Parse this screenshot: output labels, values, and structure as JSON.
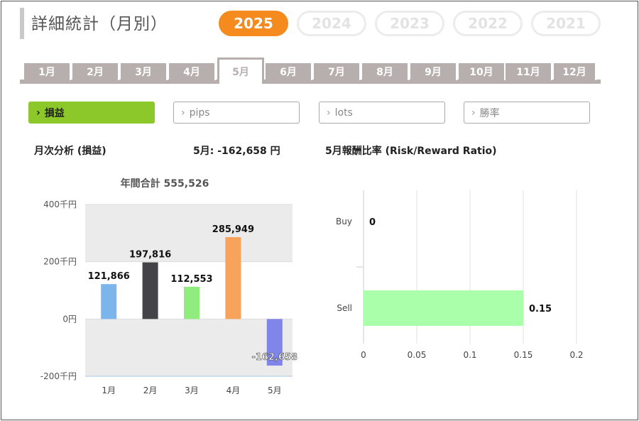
{
  "page": {
    "title": "詳細統計（月別）"
  },
  "years": [
    {
      "label": "2025",
      "active": true
    },
    {
      "label": "2024",
      "active": false
    },
    {
      "label": "2023",
      "active": false
    },
    {
      "label": "2022",
      "active": false
    },
    {
      "label": "2021",
      "active": false
    }
  ],
  "months": [
    {
      "label": "1月",
      "active": false
    },
    {
      "label": "2月",
      "active": false
    },
    {
      "label": "3月",
      "active": false
    },
    {
      "label": "4月",
      "active": false
    },
    {
      "label": "5月",
      "active": true
    },
    {
      "label": "6月",
      "active": false
    },
    {
      "label": "7月",
      "active": false
    },
    {
      "label": "8月",
      "active": false
    },
    {
      "label": "9月",
      "active": false
    },
    {
      "label": "10月",
      "active": false
    },
    {
      "label": "11月",
      "active": false
    },
    {
      "label": "12月",
      "active": false
    }
  ],
  "metrics": [
    {
      "label": "損益",
      "active": true
    },
    {
      "label": "pips",
      "active": false
    },
    {
      "label": "lots",
      "active": false
    },
    {
      "label": "勝率",
      "active": false
    }
  ],
  "sections": {
    "monthly_analysis": "月次分析 (損益)",
    "month_value": "5月:  -162,658 円",
    "ratio_title": "5月報酬比率 (Risk/Reward Ratio)"
  },
  "colors": {
    "accent_orange": "#f58a1f",
    "active_green": "#8dc82b",
    "tab_gray": "#b7aeae"
  },
  "chart_data": [
    {
      "type": "bar",
      "title": "年間合計 555,526",
      "categories": [
        "1月",
        "2月",
        "3月",
        "4月",
        "5月"
      ],
      "values": [
        121866,
        197816,
        112553,
        285949,
        -162658
      ],
      "value_labels": [
        "121,866",
        "197,816",
        "112,553",
        "285,949",
        "-162,658"
      ],
      "colors": [
        "#7cb5ec",
        "#434348",
        "#90ed7d",
        "#f7a35c",
        "#8085e9"
      ],
      "ylim": [
        -200000,
        400000
      ],
      "yticks": [
        {
          "value": 400000,
          "label": "400千円"
        },
        {
          "value": 200000,
          "label": "200千円"
        },
        {
          "value": 0,
          "label": "0円"
        },
        {
          "value": -200000,
          "label": "-200千円"
        }
      ],
      "band_colors": [
        "#ebebeb",
        "#ffffff",
        "#ebebeb"
      ]
    },
    {
      "type": "bar",
      "orientation": "horizontal",
      "categories": [
        "Buy",
        "Sell"
      ],
      "values": [
        0,
        0.15
      ],
      "value_labels": [
        "0",
        "0.15"
      ],
      "colors": [
        "#aaffaa",
        "#aaffaa"
      ],
      "xlim": [
        0,
        0.2
      ],
      "xticks": [
        "0",
        "0.05",
        "0.1",
        "0.15",
        "0.2"
      ]
    }
  ]
}
